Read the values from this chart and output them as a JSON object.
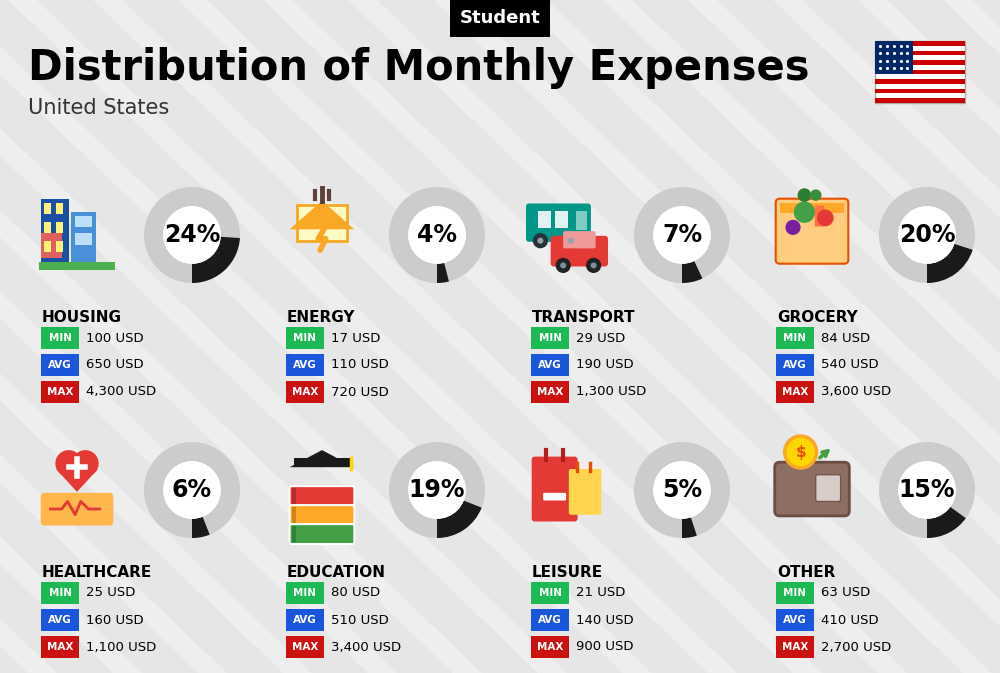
{
  "title": "Distribution of Monthly Expenses",
  "subtitle": "United States",
  "header_label": "Student",
  "bg_color": "#eeeeee",
  "categories": [
    {
      "name": "HOUSING",
      "pct": 24,
      "icon": "housing",
      "min": "100 USD",
      "avg": "650 USD",
      "max": "4,300 USD"
    },
    {
      "name": "ENERGY",
      "pct": 4,
      "icon": "energy",
      "min": "17 USD",
      "avg": "110 USD",
      "max": "720 USD"
    },
    {
      "name": "TRANSPORT",
      "pct": 7,
      "icon": "transport",
      "min": "29 USD",
      "avg": "190 USD",
      "max": "1,300 USD"
    },
    {
      "name": "GROCERY",
      "pct": 20,
      "icon": "grocery",
      "min": "84 USD",
      "avg": "540 USD",
      "max": "3,600 USD"
    },
    {
      "name": "HEALTHCARE",
      "pct": 6,
      "icon": "healthcare",
      "min": "25 USD",
      "avg": "160 USD",
      "max": "1,100 USD"
    },
    {
      "name": "EDUCATION",
      "pct": 19,
      "icon": "education",
      "min": "80 USD",
      "avg": "510 USD",
      "max": "3,400 USD"
    },
    {
      "name": "LEISURE",
      "pct": 5,
      "icon": "leisure",
      "min": "21 USD",
      "avg": "140 USD",
      "max": "900 USD"
    },
    {
      "name": "OTHER",
      "pct": 15,
      "icon": "other",
      "min": "63 USD",
      "avg": "410 USD",
      "max": "2,700 USD"
    }
  ],
  "min_color": "#1db954",
  "avg_color": "#1a56db",
  "max_color": "#cc1111",
  "title_fontsize": 30,
  "subtitle_fontsize": 15,
  "cat_fontsize": 11,
  "val_fontsize": 10,
  "pct_fontsize": 17
}
